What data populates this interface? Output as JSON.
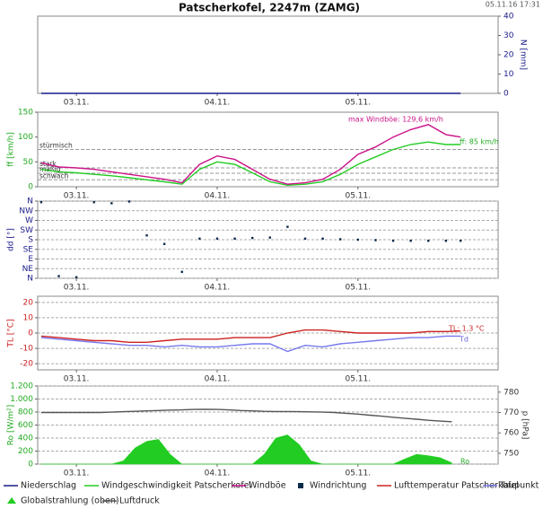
{
  "header": {
    "title": "Patscherkofel, 2247m (ZAMG)",
    "timestamp": "05.11.16 17:31"
  },
  "chart_data": [
    {
      "type": "line",
      "ylabel": "N [mm]",
      "ylabel_color": "#1a1a8c",
      "y_side": "right",
      "x": [
        -6,
        -3,
        0,
        3,
        6,
        9,
        12,
        15,
        18,
        21,
        24,
        27,
        30,
        33,
        36,
        39,
        42,
        45,
        48,
        51,
        54,
        57,
        60,
        63,
        65.5
      ],
      "xlim": [
        -6.6,
        71.9
      ],
      "xticks": [
        {
          "value": 0,
          "label": "03.11."
        },
        {
          "value": 24,
          "label": "04.11."
        },
        {
          "value": 48,
          "label": "05.11."
        }
      ],
      "ylim": [
        0,
        40
      ],
      "yticks": [
        0,
        10,
        20,
        30,
        40
      ],
      "grid": false,
      "series": [
        {
          "name": "Niederschlag",
          "color": "#1a1a8c",
          "values": [
            0,
            0,
            0,
            0,
            0,
            0,
            0,
            0,
            0,
            0,
            0,
            0,
            0,
            0,
            0,
            0,
            0,
            0,
            0,
            0,
            0,
            0,
            0,
            0,
            0
          ]
        }
      ]
    },
    {
      "type": "line",
      "ylabel": "ff [km/h]",
      "ylabel_color": "#22aa22",
      "x": [
        -6,
        -3,
        0,
        3,
        6,
        9,
        12,
        15,
        18,
        21,
        24,
        27,
        30,
        33,
        36,
        39,
        42,
        45,
        48,
        51,
        54,
        57,
        60,
        63,
        65.5
      ],
      "xlim": [
        -6.6,
        71.9
      ],
      "xticks": [
        {
          "value": 0,
          "label": "03.11."
        },
        {
          "value": 24,
          "label": "04.11."
        },
        {
          "value": 48,
          "label": "05.11."
        }
      ],
      "ylim": [
        0,
        150
      ],
      "yticks": [
        0,
        50,
        100,
        150
      ],
      "grid": false,
      "thresholds": [
        {
          "value": 75,
          "label": "stürmisch"
        },
        {
          "value": 38,
          "label": "stark"
        },
        {
          "value": 27,
          "label": "mäßig"
        },
        {
          "value": 14,
          "label": "schwach"
        }
      ],
      "annotations": [
        {
          "text": "max Windböe: 129,6 km/h",
          "color": "#cc1188"
        },
        {
          "text": "ff: 85 km/h",
          "color": "#22aa22"
        }
      ],
      "series": [
        {
          "name": "Windgeschwindigkeit Patscherkofel",
          "color": "#22cc22",
          "values": [
            35,
            30,
            28,
            25,
            22,
            18,
            14,
            10,
            5,
            35,
            50,
            45,
            28,
            10,
            3,
            5,
            10,
            25,
            45,
            60,
            75,
            85,
            90,
            85,
            85
          ]
        },
        {
          "name": "Windböe",
          "color": "#cc1188",
          "values": [
            48,
            40,
            38,
            35,
            30,
            25,
            20,
            15,
            8,
            45,
            62,
            55,
            35,
            15,
            5,
            8,
            15,
            35,
            65,
            80,
            100,
            115,
            125,
            105,
            100
          ]
        }
      ]
    },
    {
      "type": "scatter",
      "ylabel": "dd [°]",
      "ylabel_color": "#1a1a8c",
      "x": [
        -6,
        -3,
        0,
        3,
        6,
        9,
        12,
        15,
        18,
        21,
        24,
        27,
        30,
        33,
        36,
        39,
        42,
        45,
        48,
        51,
        54,
        57,
        60,
        63,
        65.5
      ],
      "xlim": [
        -6.6,
        71.9
      ],
      "xticks": [
        {
          "value": 0,
          "label": "03.11."
        },
        {
          "value": 24,
          "label": "04.11."
        },
        {
          "value": 48,
          "label": "05.11."
        }
      ],
      "ylim": [
        0,
        360
      ],
      "yticks": [
        {
          "value": 0,
          "label": "N"
        },
        {
          "value": 45,
          "label": "NE"
        },
        {
          "value": 90,
          "label": "E"
        },
        {
          "value": 135,
          "label": "SE"
        },
        {
          "value": 180,
          "label": "S"
        },
        {
          "value": 225,
          "label": "SW"
        },
        {
          "value": 270,
          "label": "W"
        },
        {
          "value": 315,
          "label": "NW"
        },
        {
          "value": 360,
          "label": "N"
        }
      ],
      "grid": true,
      "series": [
        {
          "name": "Windrichtung",
          "color": "#0a2a4a",
          "marker": "square",
          "values": [
            355,
            10,
            5,
            355,
            350,
            358,
            200,
            160,
            30,
            185,
            185,
            185,
            188,
            190,
            240,
            185,
            185,
            182,
            180,
            178,
            175,
            175,
            175,
            175,
            175
          ]
        }
      ]
    },
    {
      "type": "line",
      "ylabel": "TL [°C]",
      "ylabel_color": "#cc2222",
      "x": [
        -6,
        -3,
        0,
        3,
        6,
        9,
        12,
        15,
        18,
        21,
        24,
        27,
        30,
        33,
        36,
        39,
        42,
        45,
        48,
        51,
        54,
        57,
        60,
        63,
        65.5
      ],
      "xlim": [
        -6.6,
        71.9
      ],
      "xticks": [
        {
          "value": 0,
          "label": "03.11."
        },
        {
          "value": 24,
          "label": "04.11."
        },
        {
          "value": 48,
          "label": "05.11."
        }
      ],
      "ylim": [
        -24,
        24
      ],
      "yticks": [
        -20,
        -10,
        0,
        10,
        20
      ],
      "grid": true,
      "annotations": [
        {
          "text": "TL: 1,3 °C",
          "color": "#cc2222"
        },
        {
          "text": "Td",
          "color": "#6666dd"
        }
      ],
      "series": [
        {
          "name": "Lufttemperatur Patscherkofel",
          "color": "#cc2222",
          "values": [
            -2,
            -3,
            -4,
            -5,
            -5,
            -6,
            -6,
            -5,
            -4,
            -4,
            -4,
            -3,
            -3,
            -3,
            0,
            2,
            2,
            1,
            0,
            0,
            0,
            0,
            1,
            1,
            1.3
          ]
        },
        {
          "name": "Taupunkt",
          "color": "#7777ee",
          "values": [
            -3,
            -4,
            -5,
            -6,
            -7,
            -8,
            -8,
            -9,
            -8,
            -9,
            -9,
            -8,
            -7,
            -7,
            -12,
            -8,
            -9,
            -7,
            -6,
            -5,
            -4,
            -3,
            -3,
            -2,
            -2
          ]
        }
      ]
    },
    {
      "type": "line",
      "ylabel": "Ro [W/m²]",
      "ylabel_color": "#22aa22",
      "y2label": "p [hPa]",
      "x": [
        -6,
        -4,
        -2,
        0,
        2,
        4,
        6,
        8,
        10,
        12,
        14,
        16,
        18,
        20,
        22,
        24,
        26,
        28,
        30,
        32,
        34,
        36,
        38,
        40,
        42,
        44,
        46,
        48,
        50,
        52,
        54,
        56,
        58,
        60,
        62,
        64
      ],
      "xlim": [
        -6.6,
        71.9
      ],
      "xticks": [
        {
          "value": 0,
          "label": "03.11."
        },
        {
          "value": 24,
          "label": "04.11."
        },
        {
          "value": 48,
          "label": "05.11."
        }
      ],
      "ylim": [
        0,
        1200
      ],
      "yticks": [
        0,
        200,
        400,
        600,
        800,
        {
          "value": 1000,
          "label": "1.000"
        },
        {
          "value": 1200,
          "label": "1.200"
        }
      ],
      "y2lim": [
        744.7,
        783
      ],
      "y2ticks": [
        750,
        760,
        770,
        780
      ],
      "grid": true,
      "annotations": [
        {
          "text": "Ro",
          "color": "#22aa22"
        }
      ],
      "series": [
        {
          "name": "Globalstrahlung (oben)",
          "color": "#22cc22",
          "type": "area",
          "marker": "triangle",
          "values": [
            0,
            0,
            0,
            0,
            0,
            0,
            0,
            50,
            250,
            350,
            380,
            150,
            0,
            0,
            0,
            0,
            0,
            0,
            0,
            150,
            400,
            450,
            300,
            50,
            0,
            0,
            0,
            0,
            0,
            0,
            0,
            80,
            150,
            130,
            100,
            20
          ]
        },
        {
          "name": "Luftdruck",
          "color": "#555555",
          "axis": "y2",
          "values": [
            770,
            770,
            770,
            770,
            770,
            770,
            770.2,
            770.4,
            770.6,
            770.8,
            771,
            771.2,
            771.3,
            771.5,
            771.6,
            771.5,
            771.3,
            771,
            770.8,
            770.6,
            770.5,
            770.5,
            770.4,
            770.3,
            770.2,
            770,
            769.6,
            769.2,
            768.7,
            768.2,
            767.7,
            767.2,
            766.7,
            766.2,
            765.8,
            765.5
          ]
        }
      ]
    }
  ]
}
